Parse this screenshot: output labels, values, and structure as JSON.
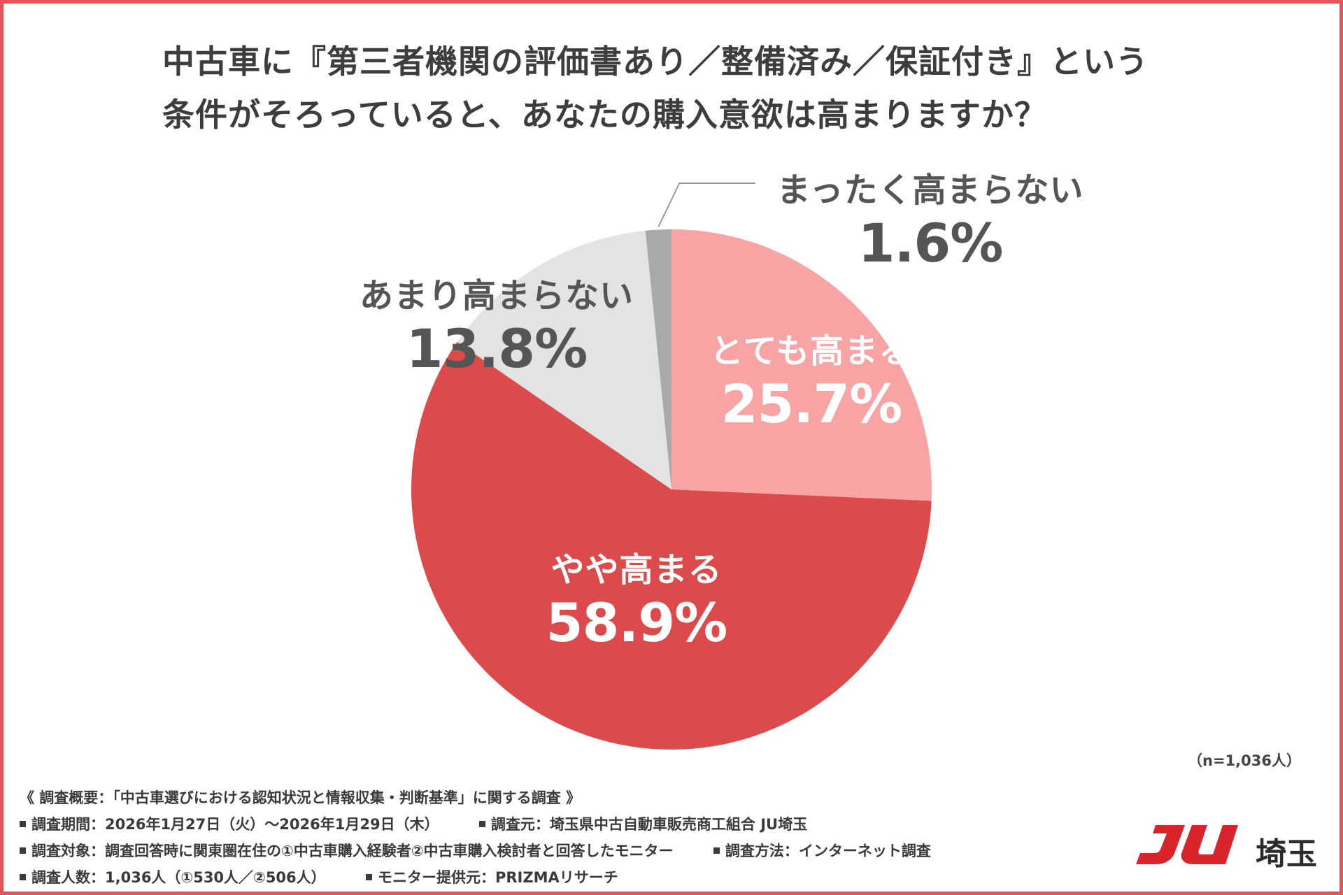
{
  "title": {
    "line1": "中古車に『第三者機関の評価書あり／整備済み／保証付き』という",
    "line2": "条件がそろっていると、あなたの購入意欲は高まりますか？"
  },
  "chart_data": {
    "type": "pie",
    "title": "中古車に『第三者機関の評価書あり／整備済み／保証付き』という条件がそろっていると、あなたの購入意欲は高まりますか？",
    "slices": [
      {
        "label": "とても高まる",
        "value": 25.7,
        "display": "25.7%",
        "color": "#f8a3a4"
      },
      {
        "label": "やや高まる",
        "value": 58.9,
        "display": "58.9%",
        "color": "#dc4a4c"
      },
      {
        "label": "あまり高まらない",
        "value": 13.8,
        "display": "13.8%",
        "color": "#e3e3e3"
      },
      {
        "label": "まったく高まらない",
        "value": 1.6,
        "display": "1.6%",
        "color": "#a9a9a9"
      }
    ],
    "start": "12 o'clock",
    "direction": "clockwise"
  },
  "sample_size": "（n=1,036人）",
  "notes": {
    "header": "《 調査概要：「中古車選びにおける認知状況と情報収集・判断基準」に関する調査 》",
    "period": "調査期間：2026年1月27日（火）〜2026年1月29日（木）",
    "source": "調査元：埼玉県中古自動車販売商工組合 JU埼玉",
    "target": "調査対象：調査回答時に関東圏在住の①中古車購入経験者②中古車購入検討者と回答したモニター",
    "method": "調査方法：インターネット調査",
    "count": "調査人数：1,036人（①530人／②506人）",
    "provider": "モニター提供元：PRIZMAリサーチ"
  },
  "logo": {
    "mark": "JU",
    "text": "埼玉",
    "color": "#d9242b"
  }
}
